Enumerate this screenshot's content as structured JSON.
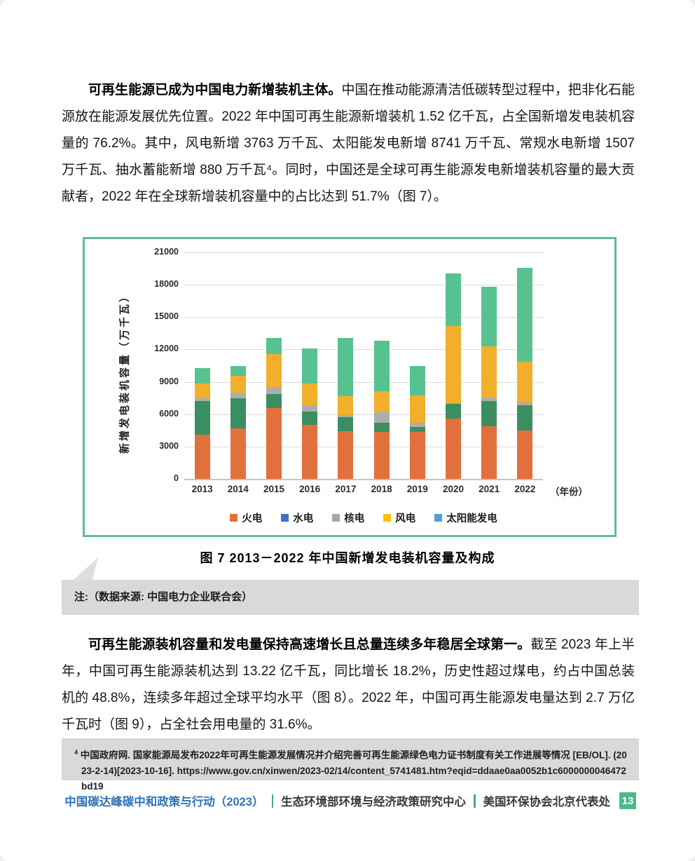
{
  "content": {
    "p1_bold": "可再生能源已成为中国电力新增装机主体。",
    "p1_rest": "中国在推动能源清洁低碳转型过程中，把非化石能源放在能源发展优先位置。2022 年中国可再生能源新增装机 1.52 亿千瓦，占全国新增发电装机容量的 76.2%。其中，风电新增 3763 万千瓦、太阳能发电新增 8741 万千瓦、常规水电新增 1507 万千瓦、抽水蓄能新增 880 万千瓦⁴。同时，中国还是全球可再生能源发电新增装机容量的最大贡献者，2022 年在全球新增装机容量中的占比达到 51.7%（图 7）。",
    "figure_caption": "图 7  2013－2022 年中国新增发电装机容量及构成",
    "note": "注:（数据来源: 中国电力企业联合会）",
    "p2_bold": "可再生能源装机容量和发电量保持高速增长且总量连续多年稳居全球第一。",
    "p2_rest": "截至 2023 年上半年，中国可再生能源装机达到 13.22 亿千瓦，同比增长 18.2%，历史性超过煤电，约占中国总装机的 48.8%，连续多年超过全球平均水平（图 8）。2022 年，中国可再生能源发电量达到 2.7 万亿千瓦时（图 9），占全社会用电量的 31.6%。",
    "footnote_marker": "4",
    "footnote_text": " 中国政府网. 国家能源局发布2022年可再生能源发展情况并介绍完善可再生能源绿色电力证书制度有关工作进展等情况 [EB/OL]. (2023-2-14)[2023-10-16]. https://www.gov.cn/xinwen/2023-02/14/content_5741481.htm?eqid=ddaae0aa0052b1c6000000046472bd19"
  },
  "footer": {
    "report_title": "中国碳达峰碳中和政策与行动（2023）",
    "org_1": "生态环境部环境与经济政策研究中心",
    "org_2": "美国环保协会北京代表处",
    "page_number": "13",
    "title_color": "#2E74B5",
    "separator_color": "#4BA18F",
    "page_box_color": "#4CBB8C"
  },
  "chart_data": {
    "type": "bar",
    "stacked": true,
    "title": "",
    "xlabel": "",
    "ylabel": "新增发电装机容量（万千瓦）",
    "x_unit_label": "（年份）",
    "ylim": [
      0,
      21000
    ],
    "yticks": [
      0,
      3000,
      6000,
      9000,
      12000,
      15000,
      18000,
      21000
    ],
    "grid": true,
    "legend_position": "bottom",
    "border_color": "#5FBD95",
    "categories": [
      "2013",
      "2014",
      "2015",
      "2016",
      "2017",
      "2018",
      "2019",
      "2020",
      "2021",
      "2022"
    ],
    "series": [
      {
        "name": "火电",
        "bar_color": "#E2703C",
        "legend_color": "#E2703C",
        "values": [
          4100,
          4650,
          6600,
          5000,
          4400,
          4350,
          4350,
          5600,
          4900,
          4460
        ]
      },
      {
        "name": "水电",
        "bar_color": "#3B8E60",
        "legend_color": "#4472C4",
        "values": [
          3100,
          2800,
          1300,
          1250,
          1300,
          850,
          450,
          1350,
          2300,
          2390
        ]
      },
      {
        "name": "核电",
        "bar_color": "#ADADAD",
        "legend_color": "#A6A6A6",
        "values": [
          250,
          550,
          600,
          600,
          200,
          950,
          400,
          100,
          350,
          230
        ]
      },
      {
        "name": "风电",
        "bar_color": "#F2AF2C",
        "legend_color": "#FFC000",
        "values": [
          1400,
          1550,
          3100,
          2000,
          1750,
          2000,
          2550,
          7150,
          4750,
          3760
        ]
      },
      {
        "name": "太阳能发电",
        "bar_color": "#57C28F",
        "legend_color": "#5B9BD5",
        "values": [
          1450,
          950,
          1500,
          3250,
          5400,
          4650,
          2750,
          4850,
          5500,
          8740
        ]
      }
    ]
  }
}
